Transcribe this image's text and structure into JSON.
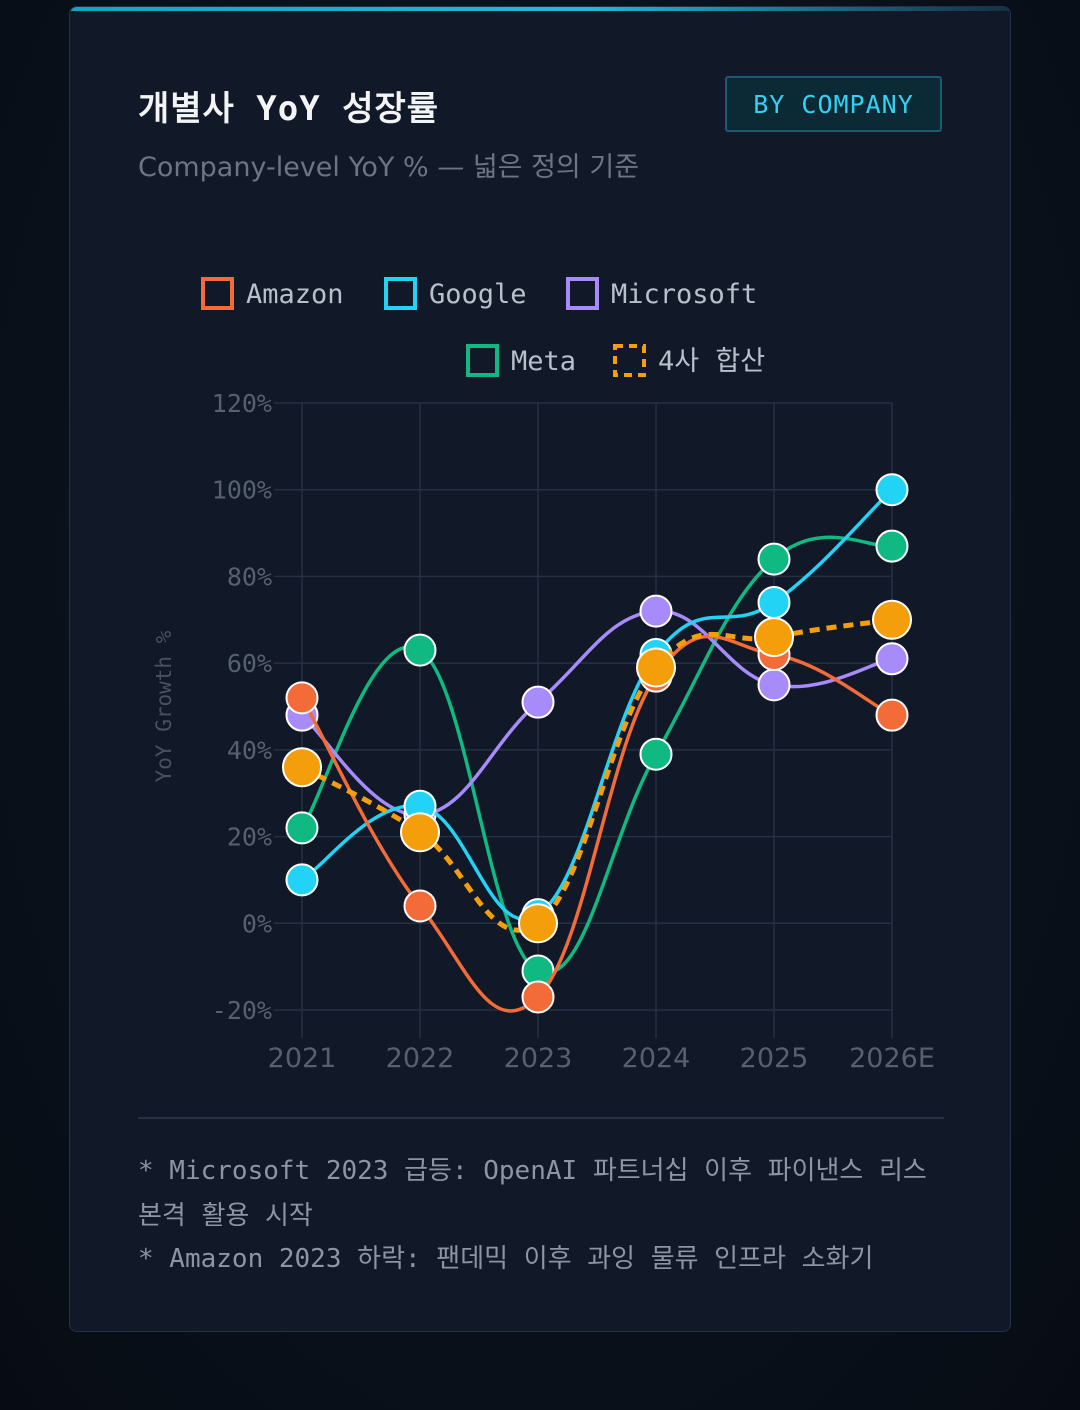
{
  "header": {
    "title": "개별사 YoY 성장률",
    "subtitle": "Company-level YoY % — 넓은 정의 기준",
    "badge": "BY COMPANY"
  },
  "notes": [
    "* Microsoft 2023 급등: OpenAI 파트너십 이후 파이낸스 리스 본격 활용 시작",
    "* Amazon 2023 하락: 팬데믹 이후 과잉 물류 인프라 소화기"
  ],
  "chart_data": {
    "type": "line",
    "x": [
      "2021",
      "2022",
      "2023",
      "2024",
      "2025",
      "2026E"
    ],
    "ylabel": "YoY Growth %",
    "ylim": [
      -20,
      120
    ],
    "yticks": [
      -20,
      0,
      20,
      40,
      60,
      80,
      100,
      120
    ],
    "ytick_labels": [
      "-20%",
      "0%",
      "20%",
      "40%",
      "60%",
      "80%",
      "100%",
      "120%"
    ],
    "grid": true,
    "legend_position": "top",
    "series": [
      {
        "name": "Amazon",
        "color": "#f26b38",
        "dashed": false,
        "values": [
          52,
          4,
          -17,
          57,
          62,
          48
        ]
      },
      {
        "name": "Google",
        "color": "#22d3f5",
        "dashed": false,
        "values": [
          10,
          27,
          2,
          62,
          74,
          100
        ]
      },
      {
        "name": "Microsoft",
        "color": "#a78bfa",
        "dashed": false,
        "values": [
          48,
          25,
          51,
          72,
          55,
          61
        ]
      },
      {
        "name": "Meta",
        "color": "#10b981",
        "dashed": false,
        "values": [
          22,
          63,
          -11,
          39,
          84,
          87
        ]
      },
      {
        "name": "4사 합산",
        "color": "#f59e0b",
        "dashed": true,
        "values": [
          36,
          21,
          0,
          59,
          66,
          70
        ]
      }
    ]
  }
}
